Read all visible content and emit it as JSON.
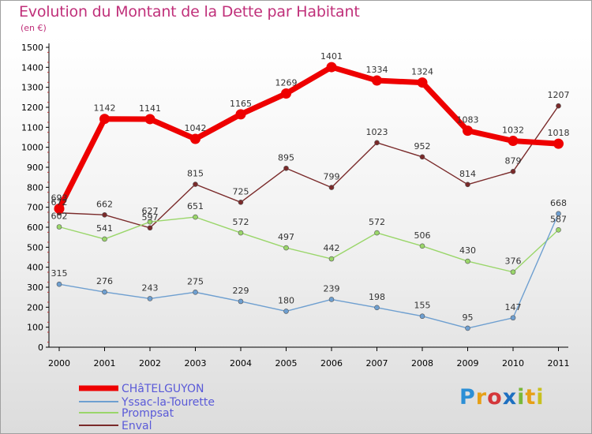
{
  "header": {
    "title": "Evolution du Montant de la Dette par Habitant",
    "unit": "(en €)"
  },
  "logo": {
    "text": "Proxiti"
  },
  "chart_data": {
    "type": "line",
    "title": "Evolution du Montant de la Dette par Habitant",
    "ylabel": "(en €)",
    "xlabel": "",
    "x": [
      "2000",
      "2001",
      "2002",
      "2003",
      "2004",
      "2005",
      "2006",
      "2007",
      "2008",
      "2009",
      "2010",
      "2011"
    ],
    "ylim": [
      0,
      1500
    ],
    "yticks": [
      0,
      100,
      200,
      300,
      400,
      500,
      600,
      700,
      800,
      900,
      1000,
      1100,
      1200,
      1300,
      1400,
      1500
    ],
    "grid": false,
    "legend_position": "bottom-left",
    "series": [
      {
        "name": "CHâTELGUYON",
        "color": "#ee0000",
        "values": [
          693,
          1142,
          1141,
          1042,
          1165,
          1269,
          1401,
          1334,
          1324,
          1083,
          1032,
          1018
        ],
        "labels": [
          "693",
          "1142",
          "1141",
          "1042",
          "1165",
          "1269",
          "1401",
          "1334",
          "1324",
          "1083",
          "1032",
          "1018"
        ]
      },
      {
        "name": "Yssac-la-Tourette",
        "color": "#6e9fd0",
        "values": [
          315,
          276,
          243,
          275,
          229,
          180,
          239,
          198,
          155,
          95,
          147,
          668
        ],
        "labels": [
          "315",
          "276",
          "243",
          "275",
          "229",
          "180",
          "239",
          "198",
          "155",
          "95",
          "147",
          "668"
        ]
      },
      {
        "name": "Prompsat",
        "color": "#9ad66a",
        "values": [
          602,
          541,
          627,
          651,
          572,
          497,
          442,
          572,
          506,
          430,
          376,
          587
        ],
        "labels": [
          "602",
          "541",
          "627",
          "651",
          "572",
          "497",
          "442",
          "572",
          "506",
          "430",
          "376",
          "587"
        ]
      },
      {
        "name": "Enval",
        "color": "#7a2a2a",
        "values": [
          672,
          662,
          597,
          815,
          725,
          895,
          799,
          1023,
          952,
          814,
          879,
          1207
        ],
        "labels": [
          "672",
          "662",
          "597",
          "815",
          "725",
          "895",
          "799",
          "1023",
          "952",
          "814",
          "879",
          "1207"
        ]
      }
    ]
  }
}
